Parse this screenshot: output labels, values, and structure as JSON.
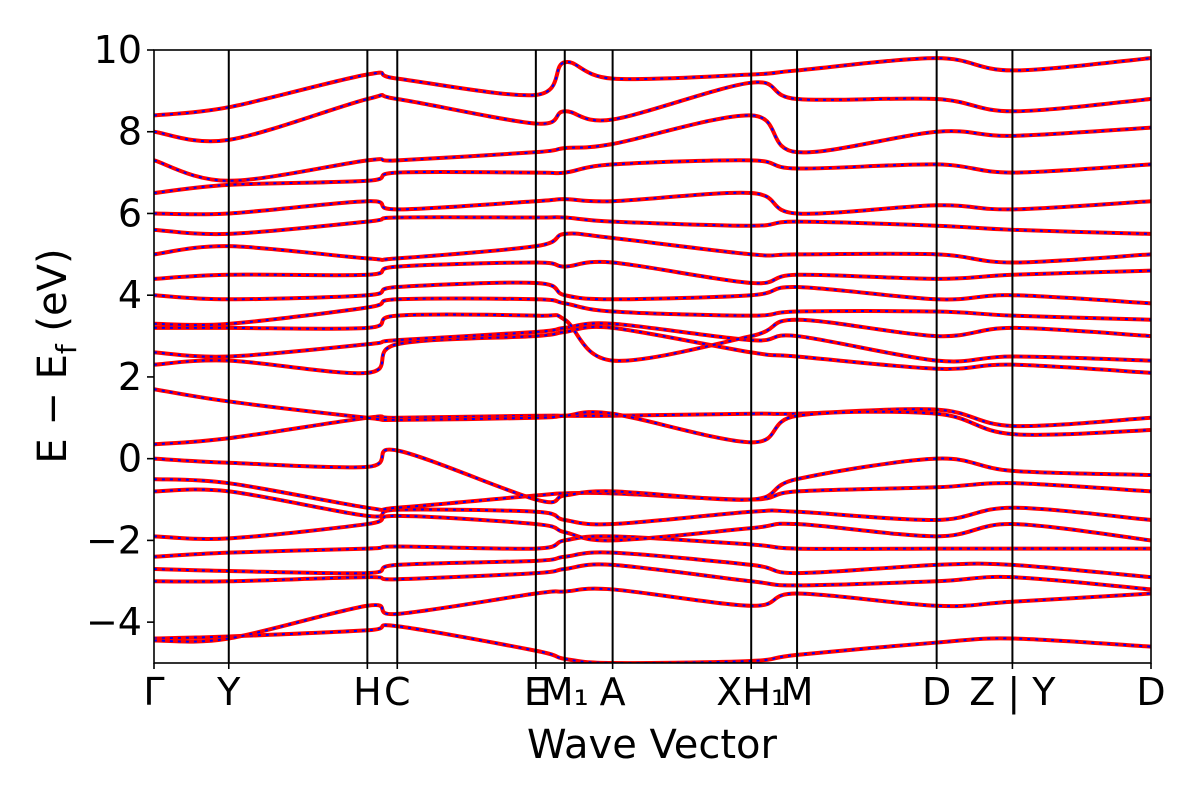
{
  "chart_data": {
    "type": "line",
    "title": "",
    "xlabel": "Wave Vector",
    "ylabel_parts": {
      "main": "E − E",
      "sub": "f",
      "unit": " (eV)"
    },
    "ylim": [
      -5,
      10
    ],
    "yticks": [
      -4,
      -2,
      0,
      2,
      4,
      6,
      8,
      10
    ],
    "ytick_labels": [
      "−4",
      "−2",
      "0",
      "2",
      "4",
      "6",
      "8",
      "10"
    ],
    "xlim": [
      0,
      1
    ],
    "kpoints": [
      {
        "x": 0.0,
        "label": "Γ"
      },
      {
        "x": 0.075,
        "label": "Y"
      },
      {
        "x": 0.214,
        "label": "H"
      },
      {
        "x": 0.244,
        "label": "C"
      },
      {
        "x": 0.383,
        "label": "E"
      },
      {
        "x": 0.412,
        "label": "M₁"
      },
      {
        "x": 0.46,
        "label": "A"
      },
      {
        "x": 0.599,
        "label": "X"
      },
      {
        "x": 0.599,
        "label": "H₁"
      },
      {
        "x": 0.645,
        "label": "M"
      },
      {
        "x": 0.785,
        "label": "D"
      },
      {
        "x": 0.861,
        "label": "Z"
      },
      {
        "x": 0.861,
        "label": "Y"
      },
      {
        "x": 1.0,
        "label": "D"
      }
    ],
    "path_breaks": [
      0.645,
      0.861
    ],
    "path_break_label": "|",
    "series": [],
    "bands_sample": {
      "x": [
        0.0,
        0.075,
        0.214,
        0.244,
        0.383,
        0.412,
        0.46,
        0.599,
        0.645,
        0.785,
        0.861,
        1.0
      ],
      "energies": [
        [
          -4.4,
          -4.35,
          -4.2,
          -4.1,
          -4.7,
          -4.9,
          -5.0,
          -4.95,
          -4.8,
          -4.5,
          -4.4,
          -4.6
        ],
        [
          -4.45,
          -4.4,
          -3.6,
          -3.8,
          -3.3,
          -3.25,
          -3.2,
          -3.6,
          -3.3,
          -3.6,
          -3.5,
          -3.3
        ],
        [
          -3.0,
          -3.0,
          -2.9,
          -2.95,
          -2.8,
          -2.7,
          -2.6,
          -3.0,
          -3.1,
          -3.0,
          -2.9,
          -3.2
        ],
        [
          -2.7,
          -2.75,
          -2.8,
          -2.6,
          -2.5,
          -2.4,
          -2.3,
          -2.6,
          -2.8,
          -2.6,
          -2.6,
          -2.9
        ],
        [
          -2.4,
          -2.3,
          -2.2,
          -2.15,
          -2.2,
          -2.0,
          -1.9,
          -2.1,
          -2.2,
          -2.2,
          -2.2,
          -2.2
        ],
        [
          -1.9,
          -1.95,
          -1.6,
          -1.4,
          -1.6,
          -1.8,
          -2.0,
          -1.7,
          -1.6,
          -1.9,
          -1.6,
          -2.0
        ],
        [
          -0.8,
          -0.8,
          -1.4,
          -1.25,
          -1.3,
          -1.5,
          -1.6,
          -1.3,
          -1.3,
          -1.5,
          -1.2,
          -1.5
        ],
        [
          -0.5,
          -0.6,
          -1.2,
          -1.2,
          -0.9,
          -0.85,
          -0.85,
          -1.0,
          -0.8,
          -0.7,
          -0.6,
          -0.8
        ],
        [
          0.0,
          -0.1,
          -0.2,
          0.2,
          -1.0,
          -0.9,
          -0.8,
          -1.0,
          -0.5,
          0.0,
          -0.3,
          -0.4
        ],
        [
          0.35,
          0.5,
          1.0,
          1.0,
          1.05,
          1.05,
          1.05,
          1.1,
          1.1,
          1.2,
          0.8,
          1.0
        ],
        [
          1.7,
          1.4,
          1.0,
          0.95,
          1.0,
          1.05,
          1.1,
          0.4,
          1.05,
          1.1,
          0.6,
          0.7
        ],
        [
          2.3,
          2.4,
          2.1,
          2.8,
          3.0,
          3.1,
          3.2,
          2.6,
          2.5,
          2.2,
          2.3,
          2.1
        ],
        [
          2.6,
          2.5,
          2.8,
          2.9,
          3.1,
          3.2,
          3.3,
          2.9,
          3.0,
          2.4,
          2.5,
          2.4
        ],
        [
          3.2,
          3.2,
          3.2,
          3.5,
          3.5,
          3.4,
          2.4,
          3.0,
          3.4,
          3.0,
          3.2,
          3.0
        ],
        [
          3.3,
          3.3,
          3.7,
          3.9,
          3.9,
          3.8,
          3.6,
          3.5,
          3.6,
          3.6,
          3.5,
          3.4
        ],
        [
          4.0,
          3.9,
          4.0,
          4.2,
          4.3,
          4.0,
          3.9,
          4.0,
          4.2,
          3.9,
          4.0,
          3.8
        ],
        [
          4.4,
          4.5,
          4.5,
          4.7,
          4.8,
          4.7,
          4.8,
          4.3,
          4.5,
          4.4,
          4.5,
          4.6
        ],
        [
          5.0,
          5.2,
          4.9,
          4.9,
          5.2,
          5.5,
          5.4,
          5.0,
          5.0,
          5.0,
          4.8,
          5.0
        ],
        [
          5.6,
          5.5,
          5.8,
          5.9,
          5.9,
          5.9,
          5.8,
          5.7,
          5.8,
          5.7,
          5.6,
          5.5
        ],
        [
          6.0,
          6.0,
          6.3,
          6.1,
          6.3,
          6.35,
          6.3,
          6.5,
          6.0,
          6.2,
          6.1,
          6.3
        ],
        [
          6.5,
          6.7,
          6.8,
          7.0,
          7.0,
          7.0,
          7.2,
          7.3,
          7.1,
          7.2,
          7.0,
          7.2
        ],
        [
          7.3,
          6.8,
          7.3,
          7.3,
          7.5,
          7.6,
          7.7,
          8.4,
          7.5,
          8.0,
          7.9,
          8.1
        ],
        [
          8.0,
          7.8,
          8.8,
          8.8,
          8.2,
          8.5,
          8.3,
          9.2,
          8.8,
          8.8,
          8.5,
          8.8
        ],
        [
          8.4,
          8.6,
          9.4,
          9.3,
          8.9,
          9.7,
          9.3,
          9.4,
          9.5,
          9.8,
          9.5,
          9.8
        ]
      ]
    },
    "colors": {
      "dft": "#ff0000",
      "interp": "#0000ff",
      "kline": "#000000"
    }
  }
}
